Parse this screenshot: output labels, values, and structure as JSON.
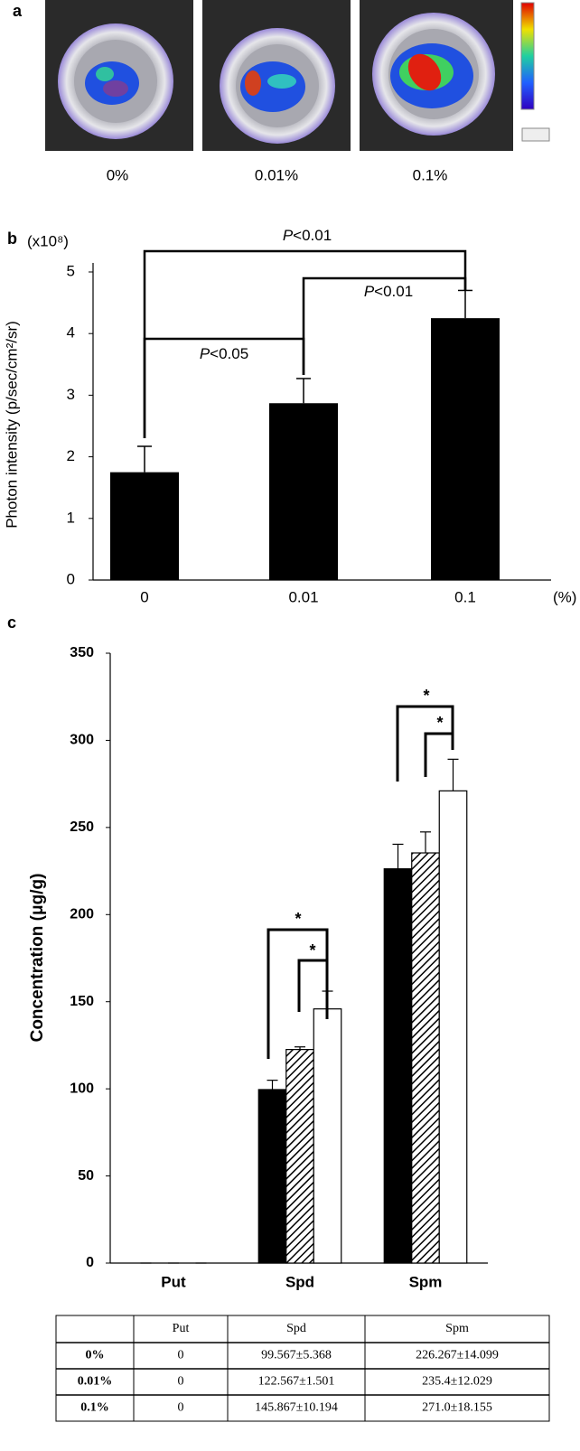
{
  "panel_a": {
    "label": "a",
    "captions": [
      "0%",
      "0.01%",
      "0.1%"
    ]
  },
  "chart_data": [
    {
      "type": "bar",
      "panel_label": "b",
      "multiplier": "(x10⁸)",
      "y_label": "Photon intensity (p/sec/cm²/sr)",
      "x_unit": "(%)",
      "categories": [
        "0",
        "0.01",
        "0.1"
      ],
      "values": [
        1.75,
        2.87,
        4.25
      ],
      "errors": [
        0.42,
        0.4,
        0.45
      ],
      "color": "#000000",
      "ylim": [
        0,
        5
      ],
      "yticks": [
        0,
        1,
        2,
        3,
        4,
        5
      ],
      "annotations": [
        "P<0.01",
        "P<0.01",
        "P<0.05"
      ]
    },
    {
      "type": "grouped-bar",
      "panel_label": "c",
      "y_label": "Concentration (μg/g)",
      "categories": [
        "Put",
        "Spd",
        "Spm"
      ],
      "series": [
        {
          "color": "#000000",
          "values": [
            0,
            99.567,
            226.267
          ],
          "errors": [
            0,
            5.368,
            14.099
          ]
        },
        {
          "color": "#000000",
          "pattern": "diagonal-hatch",
          "values": [
            0,
            122.567,
            235.4
          ],
          "errors": [
            0,
            1.501,
            12.029
          ]
        },
        {
          "color": "#ffffff",
          "values": [
            0,
            145.867,
            271.0
          ],
          "errors": [
            0,
            10.194,
            18.155
          ]
        }
      ],
      "ylim": [
        0,
        350
      ],
      "yticks": [
        0,
        50,
        100,
        150,
        200,
        250,
        300,
        350
      ],
      "annotations": [
        "*",
        "*",
        "*",
        "*"
      ]
    }
  ],
  "table": {
    "header": [
      "",
      "Put",
      "Spd",
      "Spm"
    ],
    "rows": [
      [
        "0%",
        "0",
        "99.567±5.368",
        "226.267±14.099"
      ],
      [
        "0.01%",
        "0",
        "122.567±1.501",
        "235.4±12.029"
      ],
      [
        "0.1%",
        "0",
        "145.867±10.194",
        "271.0±18.155"
      ]
    ]
  }
}
